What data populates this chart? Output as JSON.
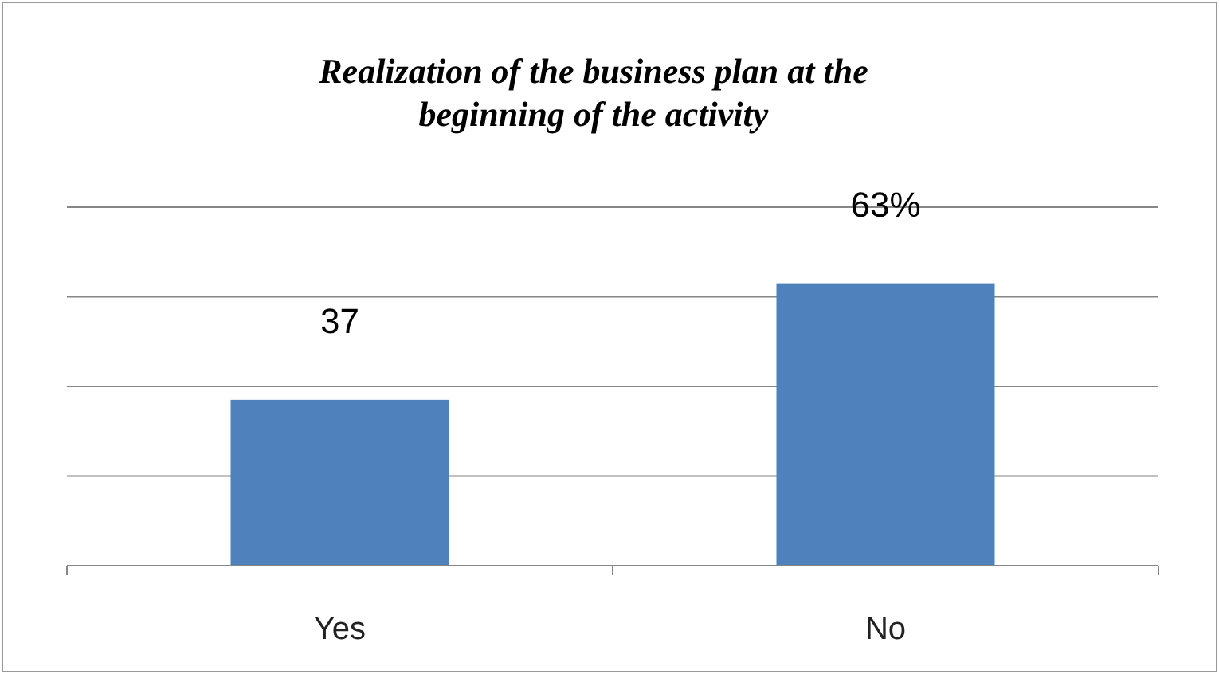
{
  "chart_data": {
    "type": "bar",
    "title": "Realization of the business plan at the beginning of the activity",
    "categories": [
      "Yes",
      "No"
    ],
    "values": [
      37,
      63
    ],
    "value_labels": [
      "37",
      "63%"
    ],
    "color": "#4f81bd",
    "ylim": [
      0,
      80
    ],
    "yticks": [
      {
        "value": 0,
        "label": null
      },
      {
        "value": 20,
        "label": null
      },
      {
        "value": 40,
        "label": null
      },
      {
        "value": 60,
        "label": null
      },
      {
        "value": 80,
        "label": null
      }
    ],
    "grid": "y",
    "tick_labels": "x"
  }
}
